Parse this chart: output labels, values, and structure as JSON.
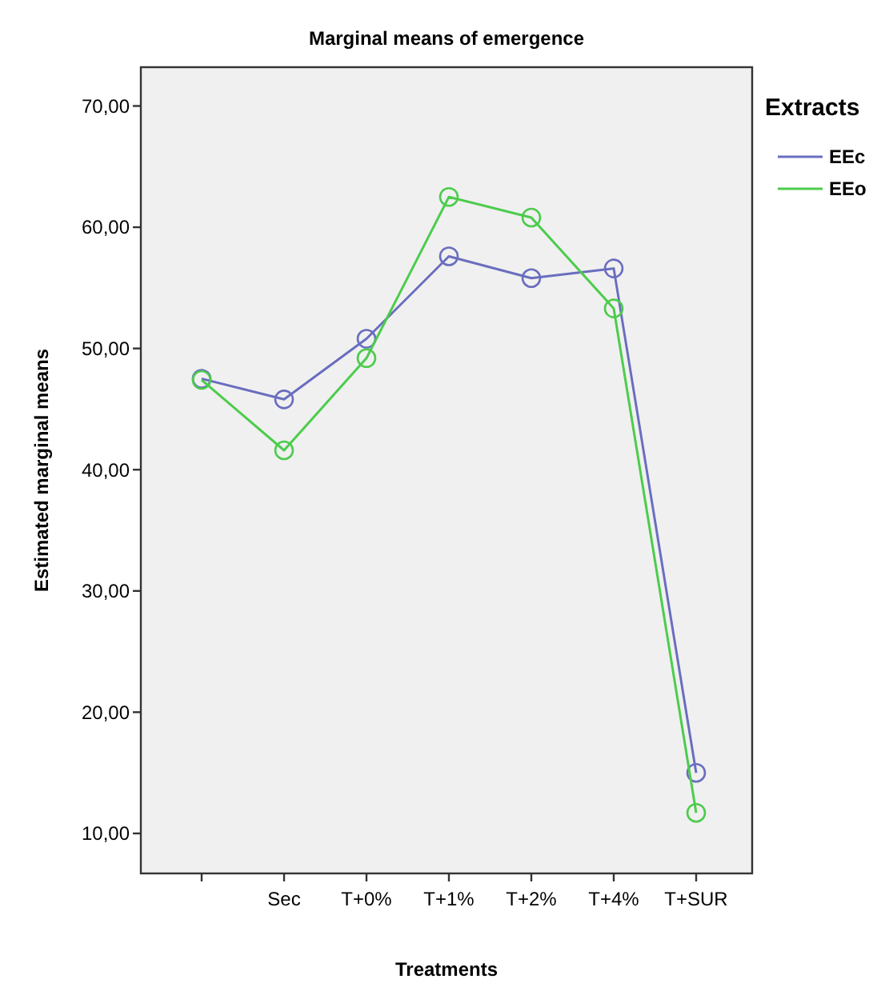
{
  "chart_data": {
    "type": "line",
    "title": "Marginal means of emergence",
    "xlabel": "Treatments",
    "ylabel": "Estimated marginal means",
    "legend_title": "Extracts",
    "categories": [
      null,
      "Sec",
      "T+0%",
      "T+1%",
      "T+2%",
      "T+4%",
      "T+SUR"
    ],
    "series": [
      {
        "name": "EEc",
        "color": "#6a6ebf",
        "values": [
          47.5,
          45.8,
          50.8,
          57.6,
          55.8,
          56.6,
          15.0
        ]
      },
      {
        "name": "EEo",
        "color": "#4ccc4c",
        "values": [
          47.4,
          41.6,
          49.2,
          62.5,
          60.8,
          53.3,
          11.7
        ]
      }
    ],
    "ylim": [
      6.7,
      73.2
    ],
    "yticks": [
      {
        "value": 10,
        "label": "10,00"
      },
      {
        "value": 20,
        "label": "20,00"
      },
      {
        "value": 30,
        "label": "30,00"
      },
      {
        "value": 40,
        "label": "40,00"
      },
      {
        "value": 50,
        "label": "50,00"
      },
      {
        "value": 60,
        "label": "60,00"
      },
      {
        "value": 70,
        "label": "70,00"
      }
    ],
    "marker": "circle",
    "legend": "top right",
    "grid": false
  }
}
